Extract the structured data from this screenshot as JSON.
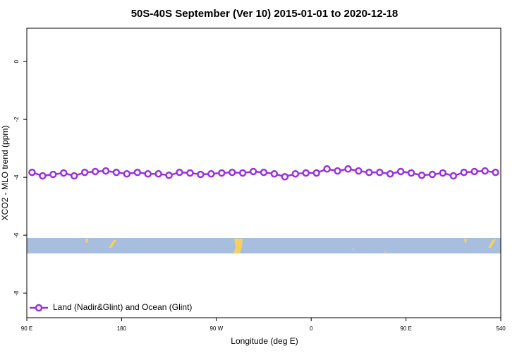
{
  "chart_data": {
    "type": "line",
    "title": "50S-40S September (Ver 10)   2015-01-01 to 2020-12-18",
    "x_label": "Longitude (deg E)",
    "y_label": "XCO2 - MLO trend (ppm)",
    "x": [
      95,
      105,
      115,
      125,
      135,
      145,
      155,
      165,
      175,
      185,
      195,
      205,
      215,
      225,
      235,
      245,
      255,
      265,
      275,
      285,
      295,
      305,
      315,
      325,
      335,
      345,
      355,
      365,
      375,
      385,
      395,
      405,
      415,
      425,
      435,
      445,
      455,
      465,
      475,
      485,
      495,
      505,
      515,
      525,
      535
    ],
    "series": [
      {
        "name": "Land (Nadir&Glint) and Ocean (Glint)",
        "color": "#9b30e0",
        "values": [
          -3.83,
          -3.95,
          -3.9,
          -3.85,
          -3.95,
          -3.83,
          -3.8,
          -3.78,
          -3.83,
          -3.88,
          -3.83,
          -3.88,
          -3.88,
          -3.93,
          -3.83,
          -3.85,
          -3.9,
          -3.88,
          -3.85,
          -3.83,
          -3.85,
          -3.8,
          -3.83,
          -3.88,
          -3.98,
          -3.88,
          -3.85,
          -3.85,
          -3.71,
          -3.78,
          -3.71,
          -3.78,
          -3.83,
          -3.83,
          -3.88,
          -3.8,
          -3.85,
          -3.93,
          -3.9,
          -3.85,
          -3.95,
          -3.83,
          -3.8,
          -3.78,
          -3.83
        ]
      }
    ],
    "xlim": [
      90,
      540
    ],
    "xticks": [
      {
        "value": 90,
        "label": "90 E"
      },
      180,
      {
        "value": 270,
        "label": "90 W"
      },
      {
        "value": 360,
        "label": "0"
      },
      {
        "value": 450,
        "label": "90 E"
      },
      540
    ],
    "ylim": [
      -8.85,
      1.15
    ],
    "yticks": [
      0,
      -2,
      -4,
      -6,
      -8
    ],
    "legend": "bottom-left"
  }
}
